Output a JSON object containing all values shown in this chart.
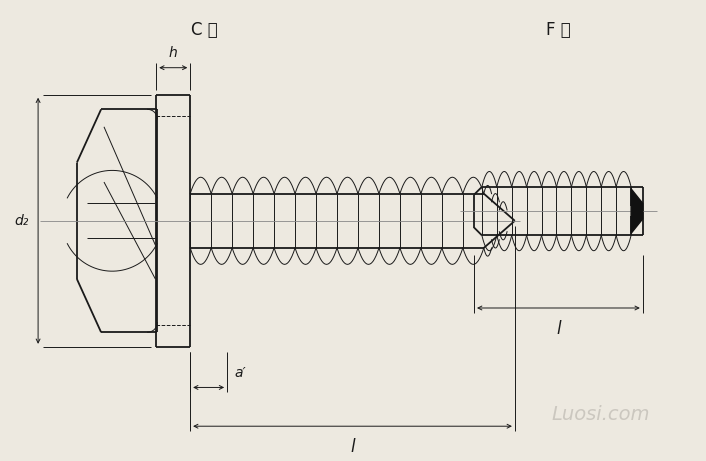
{
  "bg_color": "#ede9e0",
  "line_color": "#1a1a1a",
  "title_C": "C 型",
  "title_F": "F 型",
  "watermark": "Luosi.com",
  "label_h": "h",
  "label_d2": "d₂",
  "label_a": "a′",
  "label_l": "l",
  "figsize": [
    7.06,
    4.61
  ],
  "dpi": 100
}
